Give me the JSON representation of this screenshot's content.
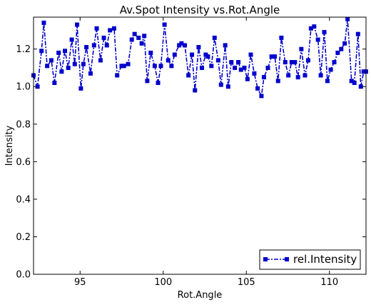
{
  "chart_data": {
    "type": "line",
    "title": "Av.Spot Intensity vs.Rot.Angle",
    "xlabel": "Rot.Angle",
    "ylabel": "Intensity",
    "xlim": [
      92.2,
      112.2
    ],
    "ylim": [
      0.0,
      1.37
    ],
    "xticks": [
      95,
      100,
      105,
      110
    ],
    "yticks": [
      0.0,
      0.2,
      0.4,
      0.6,
      0.8,
      1.0,
      1.2
    ],
    "xtick_labels": [
      "95",
      "100",
      "105",
      "110"
    ],
    "ytick_labels": [
      "0.0",
      "0.2",
      "0.4",
      "0.6",
      "0.8",
      "1.0",
      "1.2"
    ],
    "grid": false,
    "legend": {
      "position": "bottom-right",
      "label": "rel.Intensity"
    },
    "line_style": "dash-dot",
    "marker": "square",
    "color": "#0000cc",
    "series": [
      {
        "name": "rel.Intensity",
        "x": [
          92.2,
          92.44,
          92.68,
          92.82,
          93.02,
          93.27,
          93.46,
          93.71,
          93.89,
          94.09,
          94.29,
          94.5,
          94.68,
          94.82,
          95.05,
          95.2,
          95.38,
          95.63,
          95.84,
          96.0,
          96.23,
          96.43,
          96.61,
          96.8,
          97.05,
          97.23,
          97.5,
          97.64,
          97.89,
          98.11,
          98.28,
          98.52,
          98.71,
          98.86,
          99.04,
          99.25,
          99.49,
          99.69,
          99.86,
          100.08,
          100.3,
          100.5,
          100.69,
          100.96,
          101.1,
          101.3,
          101.52,
          101.73,
          101.91,
          102.13,
          102.33,
          102.56,
          102.69,
          102.9,
          103.09,
          103.31,
          103.48,
          103.73,
          103.91,
          104.1,
          104.31,
          104.52,
          104.68,
          104.88,
          105.07,
          105.27,
          105.48,
          105.68,
          105.91,
          106.06,
          106.3,
          106.52,
          106.71,
          106.91,
          107.11,
          107.34,
          107.53,
          107.73,
          107.92,
          108.11,
          108.31,
          108.53,
          108.72,
          108.89,
          109.08,
          109.31,
          109.48,
          109.69,
          109.88,
          110.08,
          110.29,
          110.5,
          110.71,
          110.92,
          111.09,
          111.33,
          111.5,
          111.72,
          111.89,
          112.06,
          112.2
        ],
        "values": [
          1.06,
          1.0,
          1.19,
          1.34,
          1.11,
          1.14,
          1.02,
          1.18,
          1.08,
          1.19,
          1.1,
          1.25,
          1.12,
          1.33,
          0.99,
          1.12,
          1.21,
          1.07,
          1.22,
          1.31,
          1.14,
          1.26,
          1.22,
          1.3,
          1.31,
          1.06,
          1.11,
          1.11,
          1.12,
          1.25,
          1.28,
          1.26,
          1.23,
          1.27,
          1.03,
          1.18,
          1.11,
          1.02,
          1.11,
          1.33,
          1.14,
          1.11,
          1.17,
          1.22,
          1.23,
          1.22,
          1.06,
          1.17,
          0.98,
          1.21,
          1.1,
          1.17,
          1.16,
          1.11,
          1.26,
          1.14,
          1.01,
          1.22,
          1.0,
          1.13,
          1.1,
          1.13,
          1.09,
          1.1,
          1.04,
          1.17,
          1.07,
          0.99,
          0.95,
          1.05,
          1.1,
          1.16,
          1.16,
          1.03,
          1.26,
          1.13,
          1.06,
          1.13,
          1.13,
          1.05,
          1.2,
          1.06,
          1.14,
          1.31,
          1.32,
          1.25,
          1.06,
          1.29,
          1.03,
          1.09,
          1.13,
          1.18,
          1.2,
          1.23,
          1.36,
          1.03,
          1.02,
          1.28,
          1.0,
          1.08,
          1.08
        ]
      }
    ]
  }
}
